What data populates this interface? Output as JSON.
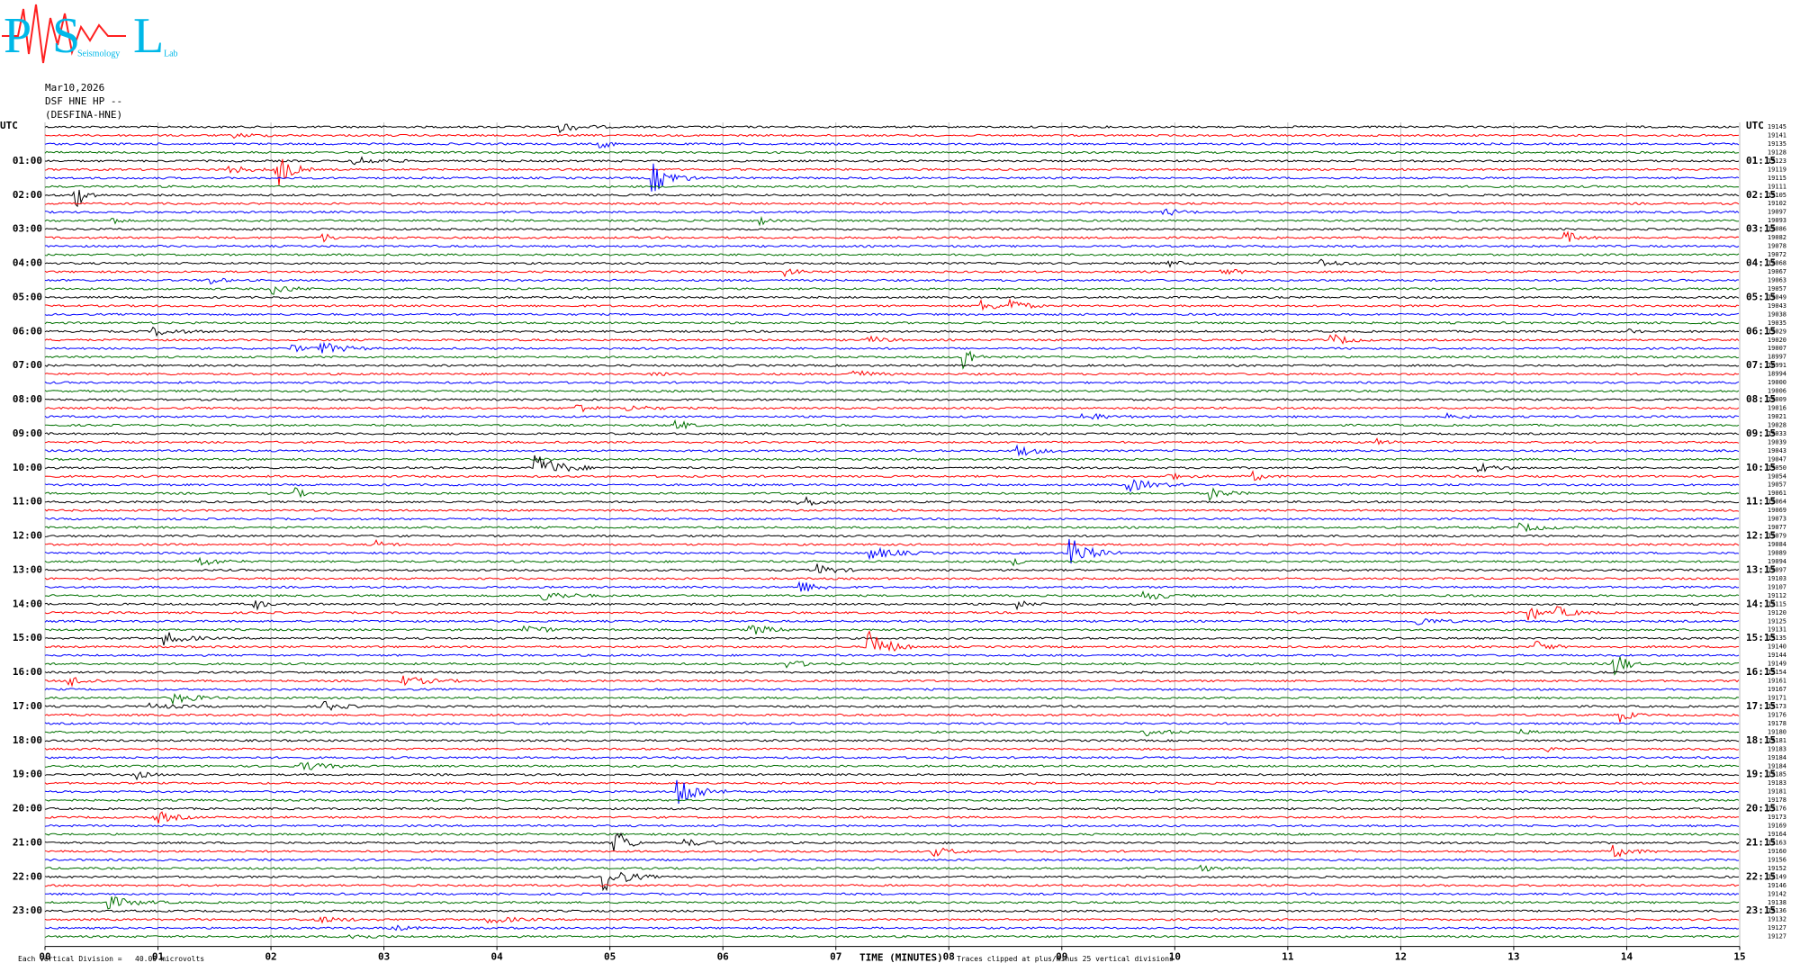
{
  "header": {
    "logo": [
      "P",
      "S",
      "L"
    ],
    "logo_words": [
      "Seismology",
      "Lab"
    ],
    "date": "Mar10,2026",
    "station": "DSF HNE HP --",
    "channel": "(DESFINA-HNE)"
  },
  "chart_data": {
    "type": "helicorder",
    "left_labels": [
      "UTC",
      "01:00",
      "02:00",
      "03:00",
      "04:00",
      "05:00",
      "06:00",
      "07:00",
      "08:00",
      "09:00",
      "10:00",
      "11:00",
      "12:00",
      "13:00",
      "14:00",
      "15:00",
      "16:00",
      "17:00",
      "18:00",
      "19:00",
      "20:00",
      "21:00",
      "22:00",
      "23:00"
    ],
    "right_labels": [
      "UTC",
      "01:15",
      "02:15",
      "03:15",
      "04:15",
      "05:15",
      "06:15",
      "07:15",
      "08:15",
      "09:15",
      "10:15",
      "11:15",
      "12:15",
      "13:15",
      "14:15",
      "15:15",
      "16:15",
      "17:15",
      "18:15",
      "19:15",
      "20:15",
      "21:15",
      "22:15",
      "23:15"
    ],
    "trace_colors": [
      "#000000",
      "#ff0000",
      "#0000ff",
      "#007000"
    ],
    "offsets": [
      19145,
      19141,
      19135,
      19128,
      19123,
      19119,
      19115,
      19111,
      19105,
      19102,
      19097,
      19093,
      19086,
      19082,
      19078,
      19072,
      19068,
      19067,
      19063,
      19057,
      19049,
      19043,
      19038,
      19035,
      19029,
      19020,
      19007,
      18997,
      18991,
      18994,
      19000,
      19006,
      19009,
      19016,
      19021,
      19028,
      19033,
      19039,
      19043,
      19047,
      19050,
      19054,
      19057,
      19061,
      19064,
      19069,
      19073,
      19077,
      19079,
      19084,
      19089,
      19094,
      19097,
      19103,
      19107,
      19112,
      19115,
      19120,
      19125,
      19131,
      19135,
      19140,
      19144,
      19149,
      19154,
      19161,
      19167,
      19171,
      19173,
      19176,
      19178,
      19180,
      19181,
      19183,
      19184,
      19184,
      19185,
      19183,
      19181,
      19178,
      19176,
      19173,
      19169,
      19164,
      19163,
      19160,
      19156,
      19152,
      19149,
      19146,
      19142,
      19138,
      19136,
      19132,
      19127,
      19127
    ],
    "xlim": [
      0,
      15
    ],
    "xticks": [
      {
        "value": 0,
        "label": "00"
      },
      {
        "value": 1,
        "label": "01"
      },
      {
        "value": 2,
        "label": "02"
      },
      {
        "value": 3,
        "label": "03"
      },
      {
        "value": 4,
        "label": "04"
      },
      {
        "value": 5,
        "label": "05"
      },
      {
        "value": 6,
        "label": "06"
      },
      {
        "value": 7,
        "label": "07"
      },
      {
        "value": 8,
        "label": "08"
      },
      {
        "value": 9,
        "label": "09"
      },
      {
        "value": 10,
        "label": "10"
      },
      {
        "value": 11,
        "label": "11"
      },
      {
        "value": 12,
        "label": "12"
      },
      {
        "value": 13,
        "label": "13"
      },
      {
        "value": 14,
        "label": "14"
      },
      {
        "value": 15,
        "label": "15"
      }
    ],
    "x_label": "TIME (MINUTES)",
    "scale_note": "Each Vertical Division =   40.00 microvolts",
    "clip_note": "Traces clipped at plus/minus 25 vertical divisions"
  }
}
